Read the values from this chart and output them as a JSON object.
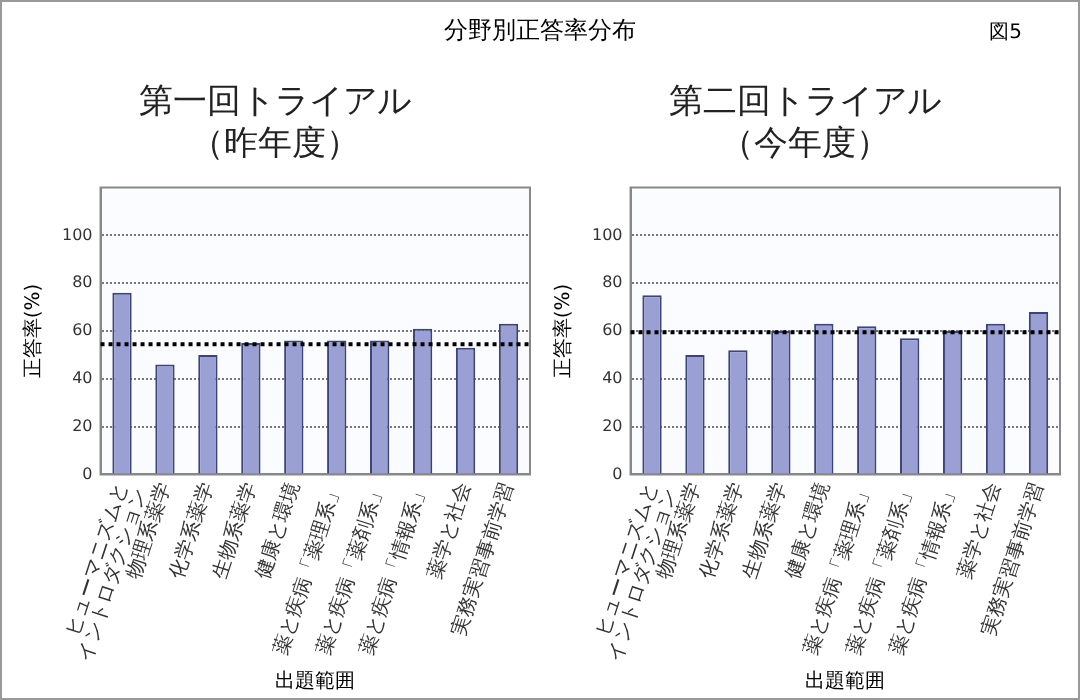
{
  "chart_data": [
    {
      "type": "bar",
      "title": "第一回トライアル（昨年度）",
      "annotations": [
        "分野別正答率分布",
        "図5"
      ],
      "xlabel": "出題範囲",
      "ylabel": "正答率(%)",
      "categories": [
        "ヒューマニズムと\nイントロダクション",
        "物理系薬学",
        "化学系薬学",
        "生物系薬学",
        "健康と環境",
        "薬と疾病「薬理系」",
        "薬と疾病「薬剤系」",
        "薬と疾病「情報系」",
        "薬学と社会",
        "実務実習事前学習"
      ],
      "values": [
        76,
        46,
        50,
        55,
        56,
        56,
        56,
        61,
        53,
        63
      ],
      "color": "#9aa0d4",
      "ylim": [
        0,
        120
      ],
      "yticks": [
        0,
        20,
        40,
        60,
        80,
        100
      ],
      "grid": "y",
      "ref_lines": [
        {
          "axis": "y",
          "value": 54.5,
          "color": "#000000",
          "line_style": "dotted"
        }
      ]
    },
    {
      "type": "bar",
      "title": "第二回トライアル（今年度）",
      "xlabel": "出題範囲",
      "ylabel": "正答率(%)",
      "categories": [
        "ヒューマニズムと\nイントロダクション",
        "物理系薬学",
        "化学系薬学",
        "生物系薬学",
        "健康と環境",
        "薬と疾病「薬理系」",
        "薬と疾病「薬剤系」",
        "薬と疾病「情報系」",
        "薬学と社会",
        "実務実習事前学習"
      ],
      "values": [
        75,
        50,
        52,
        60,
        63,
        62,
        57,
        60,
        63,
        68
      ],
      "color": "#9aa0d4",
      "ylim": [
        0,
        120
      ],
      "yticks": [
        0,
        20,
        40,
        60,
        80,
        100
      ],
      "grid": "y",
      "ref_lines": [
        {
          "axis": "y",
          "value": 59.5,
          "color": "#000000",
          "line_style": "dotted"
        }
      ]
    }
  ]
}
